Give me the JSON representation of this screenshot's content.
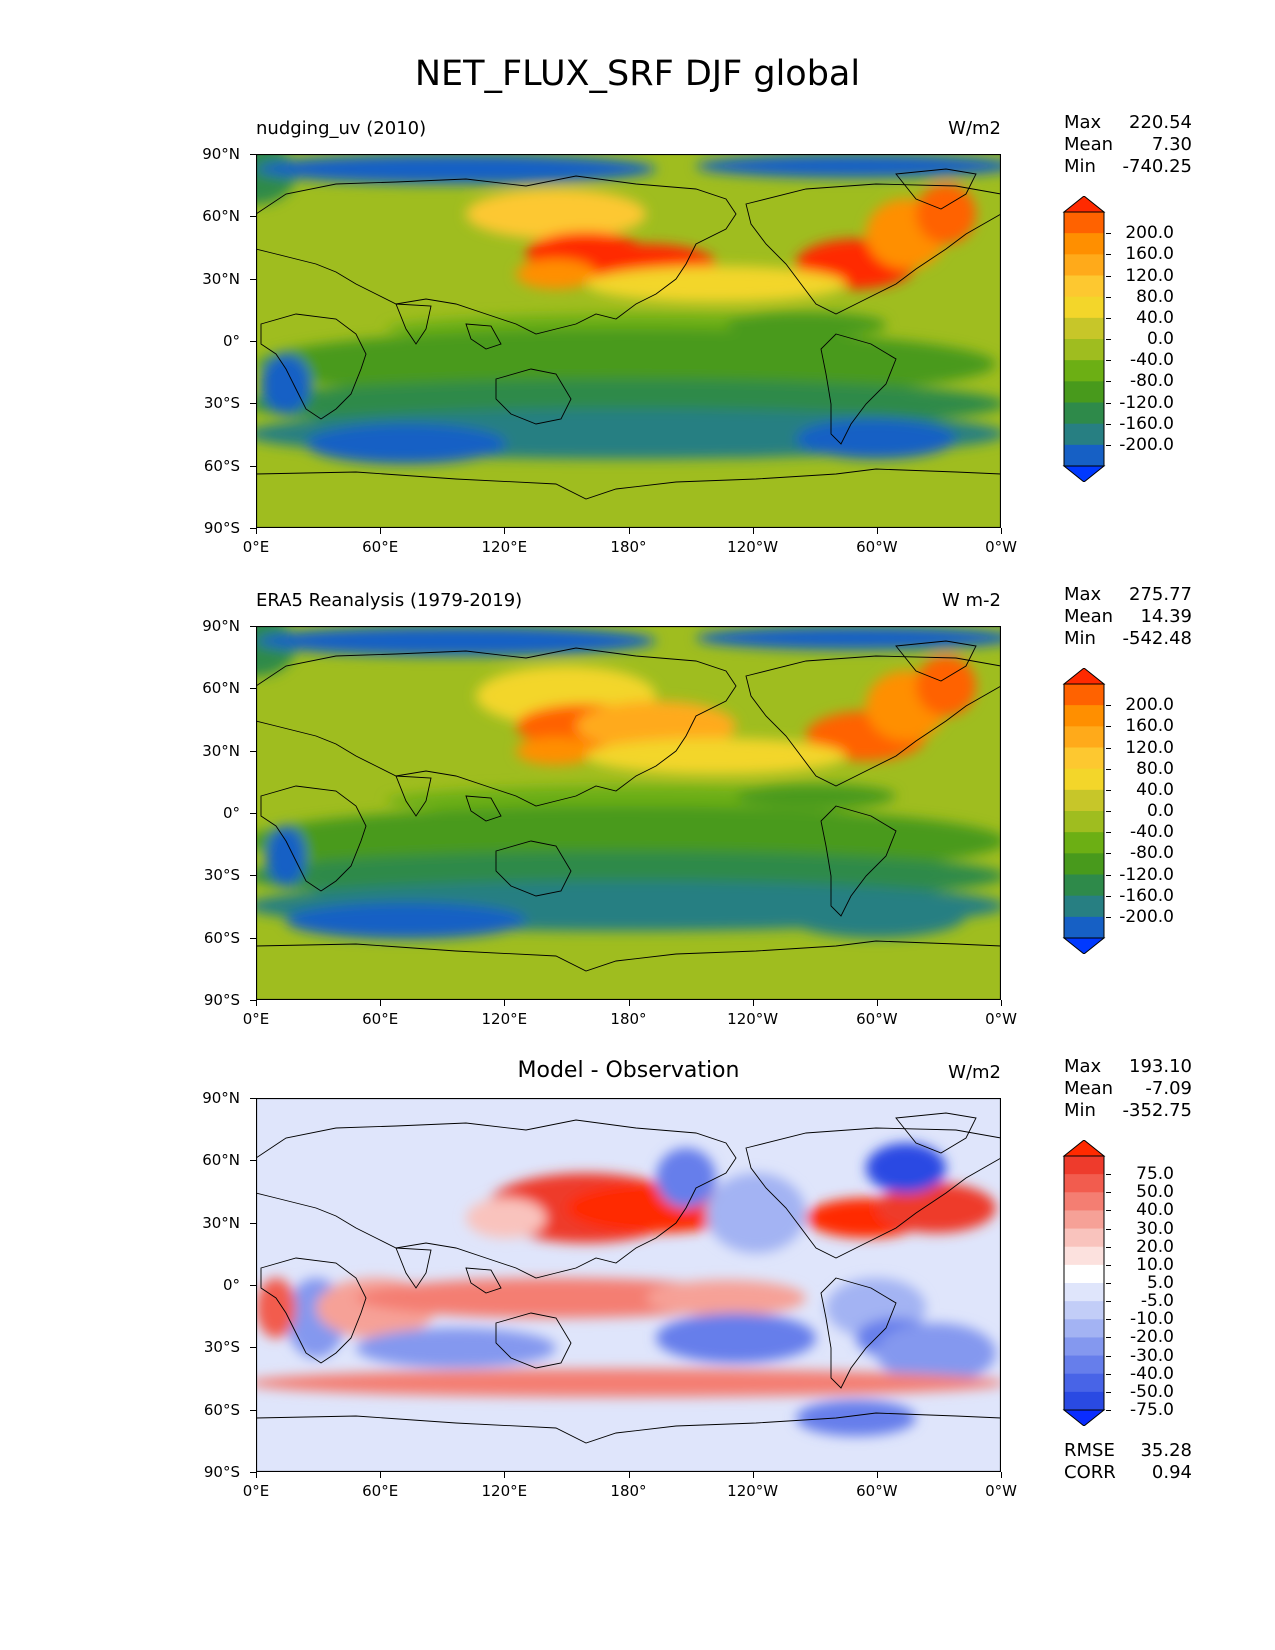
{
  "figure": {
    "title": "NET_FLUX_SRF DJF global"
  },
  "axes": {
    "lat_labels": [
      "90°N",
      "60°N",
      "30°N",
      "0°",
      "30°S",
      "60°S",
      "90°S"
    ],
    "lon_labels": [
      "0°E",
      "60°E",
      "120°E",
      "180°",
      "120°W",
      "60°W",
      "0°W"
    ]
  },
  "panels": [
    {
      "id": "model",
      "left_title": "nudging_uv (2010)",
      "center_title": "",
      "units": "W/m2",
      "stats": [
        {
          "label": "Max",
          "value": "220.54"
        },
        {
          "label": "Mean",
          "value": "7.30"
        },
        {
          "label": "Min",
          "value": "-740.25"
        }
      ],
      "colorbar": {
        "levels": [
          "200.0",
          "160.0",
          "120.0",
          "80.0",
          "40.0",
          "0.0",
          "-40.0",
          "-80.0",
          "-120.0",
          "-160.0",
          "-200.0"
        ],
        "colors": [
          "#ff2a00",
          "#ff6200",
          "#ff8f00",
          "#ffaa1a",
          "#fdc830",
          "#f3d62a",
          "#c7c629",
          "#9fbd1f",
          "#6caf14",
          "#489a1c",
          "#2e8a4a",
          "#277f82",
          "#1660c5",
          "#0039ff"
        ]
      }
    },
    {
      "id": "obs",
      "left_title": "ERA5 Reanalysis (1979-2019)",
      "center_title": "",
      "units": "W m-2",
      "stats": [
        {
          "label": "Max",
          "value": "275.77"
        },
        {
          "label": "Mean",
          "value": "14.39"
        },
        {
          "label": "Min",
          "value": "-542.48"
        }
      ],
      "colorbar": {
        "levels": [
          "200.0",
          "160.0",
          "120.0",
          "80.0",
          "40.0",
          "0.0",
          "-40.0",
          "-80.0",
          "-120.0",
          "-160.0",
          "-200.0"
        ],
        "colors": [
          "#ff2a00",
          "#ff6200",
          "#ff8f00",
          "#ffaa1a",
          "#fdc830",
          "#f3d62a",
          "#c7c629",
          "#9fbd1f",
          "#6caf14",
          "#489a1c",
          "#2e8a4a",
          "#277f82",
          "#1660c5",
          "#0039ff"
        ]
      }
    },
    {
      "id": "diff",
      "left_title": "",
      "center_title": "Model - Observation",
      "units": "W/m2",
      "stats": [
        {
          "label": "Max",
          "value": "193.10"
        },
        {
          "label": "Mean",
          "value": "-7.09"
        },
        {
          "label": "Min",
          "value": "-352.75"
        }
      ],
      "extra_stats": [
        {
          "label": "RMSE",
          "value": "35.28"
        },
        {
          "label": "CORR",
          "value": "0.94"
        }
      ],
      "colorbar": {
        "levels": [
          "75.0",
          "50.0",
          "40.0",
          "30.0",
          "20.0",
          "10.0",
          "5.0",
          "-5.0",
          "-10.0",
          "-20.0",
          "-30.0",
          "-40.0",
          "-50.0",
          "-75.0"
        ],
        "colors": [
          "#ff2a00",
          "#ee3b2c",
          "#f25c4e",
          "#f47e72",
          "#f6a197",
          "#f9c3bd",
          "#fce1de",
          "#ffffff",
          "#dfe5fb",
          "#c2cdf7",
          "#a3b3f3",
          "#8498ef",
          "#667eeb",
          "#4864e7",
          "#2a4ae3",
          "#0a2cff"
        ]
      }
    }
  ]
}
